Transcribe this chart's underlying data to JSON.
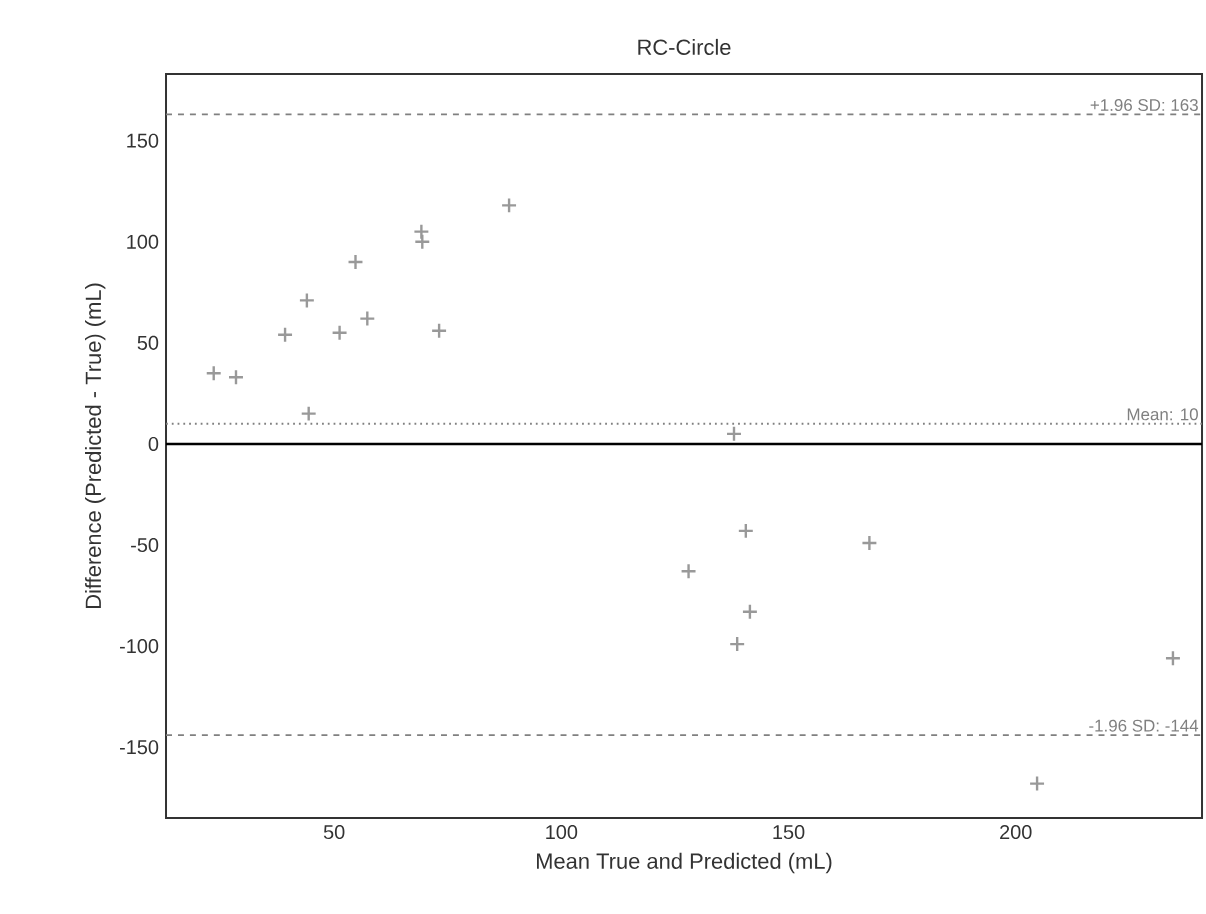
{
  "chart_data": {
    "type": "scatter",
    "title": "RC-Circle",
    "xlabel": "Mean True and Predicted (mL)",
    "ylabel": "Difference (Predicted - True) (mL)",
    "x": [
      88.5,
      69.2,
      69.4,
      54.7,
      44,
      39.2,
      51.2,
      57.3,
      73.1,
      23.5,
      28.4,
      44.4,
      138,
      140.6,
      167.8,
      128,
      141.5,
      138.7,
      234.6,
      204.7
    ],
    "values": [
      118,
      105,
      100,
      90,
      71,
      54,
      55,
      62,
      56,
      35,
      33,
      15,
      5,
      -43,
      -49,
      -63,
      -83,
      -99,
      -106,
      -168
    ],
    "color": "#999999",
    "marker": "cross",
    "grid": false,
    "xlim": [
      13,
      241
    ],
    "ylim": [
      -185,
      183
    ],
    "xticks": [
      50,
      100,
      150,
      200
    ],
    "yticks": [
      -150,
      -100,
      -50,
      0,
      50,
      100,
      150
    ],
    "ref_lines": [
      {
        "axis": "y",
        "value": 163,
        "label": "+1.96 SD: 163",
        "color": "#808080",
        "line_style": "dashed"
      },
      {
        "axis": "y",
        "value": 10,
        "label": "Mean: 10",
        "color": "#808080",
        "line_style": "dotted"
      },
      {
        "axis": "y",
        "value": 0,
        "color": "#000000",
        "line_style": "solid"
      },
      {
        "axis": "y",
        "value": -144,
        "label": "-1.96 SD: -144",
        "color": "#808080",
        "line_style": "dashed"
      }
    ]
  }
}
